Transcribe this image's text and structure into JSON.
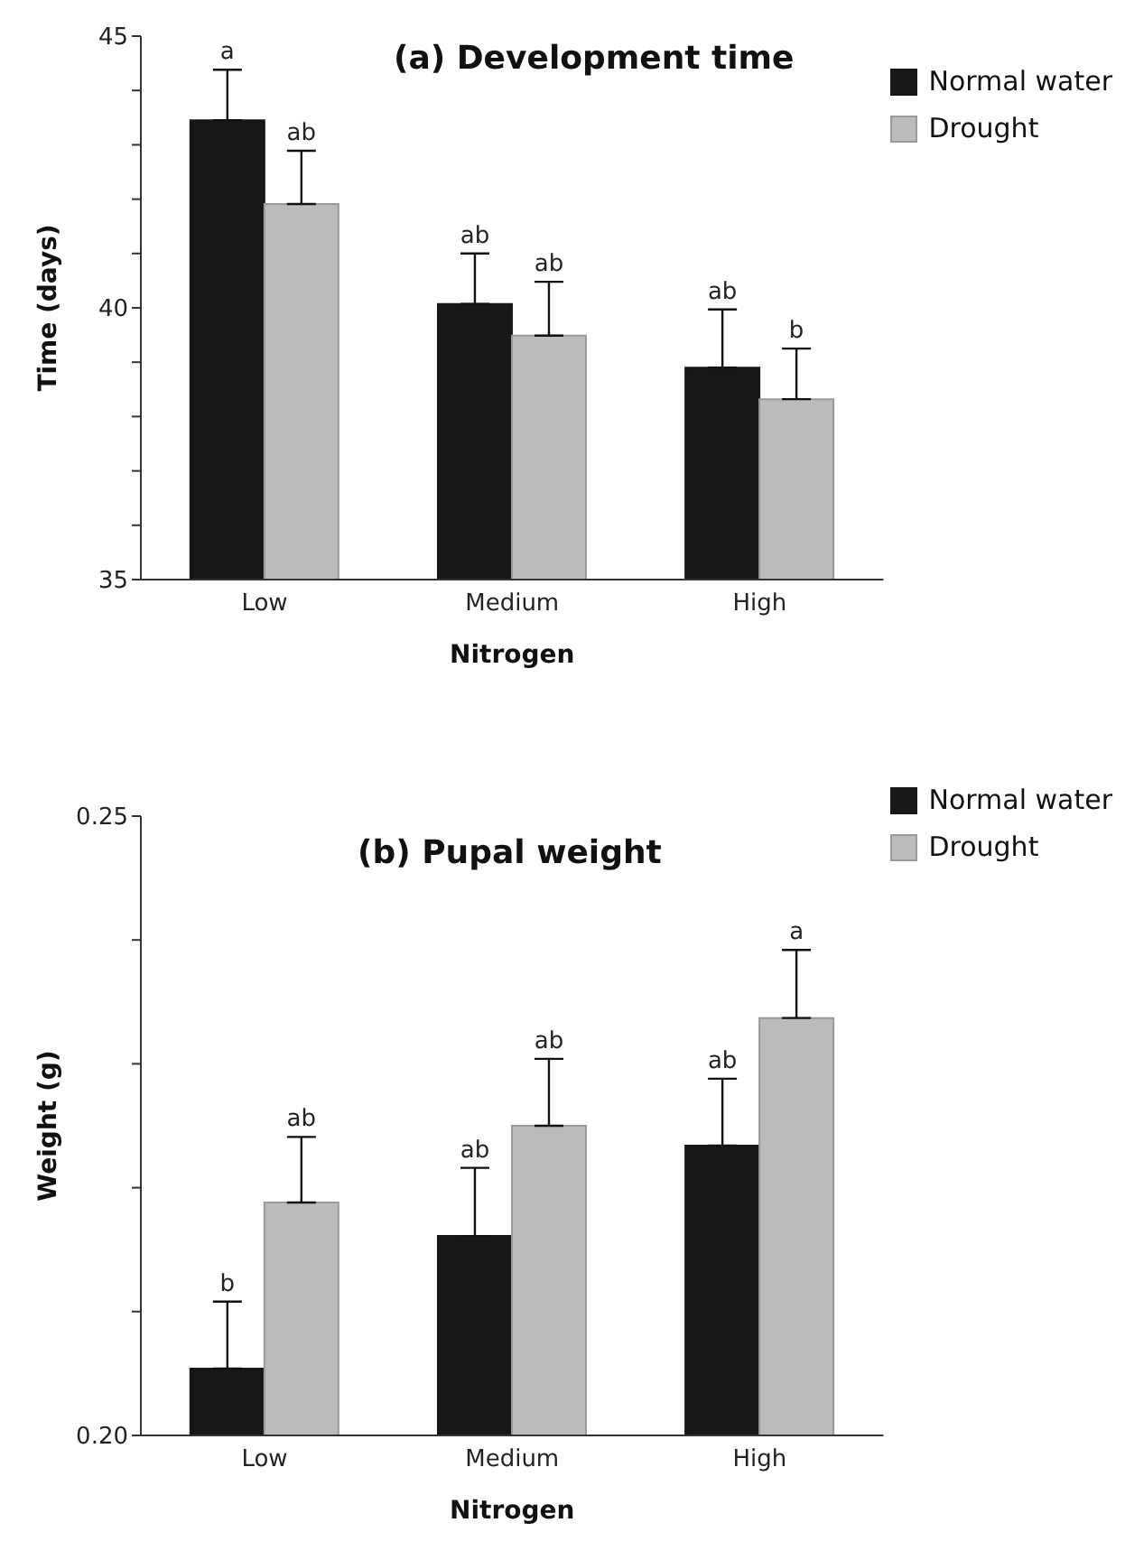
{
  "chart_data": [
    {
      "type": "bar",
      "title": "(a) Development time",
      "xlabel": "Nitrogen",
      "ylabel": "Time (days)",
      "categories": [
        "Low",
        "Medium",
        "High"
      ],
      "series": [
        {
          "name": "Normal water",
          "color": "#171717",
          "values": [
            43.45,
            40.07,
            38.9
          ],
          "errors": [
            [
              43.45,
              44.38
            ],
            [
              40.07,
              41.0
            ],
            [
              38.9,
              39.97
            ]
          ]
        },
        {
          "name": "Drought",
          "color": "#bbbbbb",
          "values": [
            41.91,
            39.49,
            38.32
          ],
          "errors": [
            [
              41.91,
              42.89
            ],
            [
              39.49,
              40.48
            ],
            [
              38.32,
              39.25
            ]
          ]
        }
      ],
      "ylim": [
        35,
        45
      ],
      "yticks": [
        35,
        {
          "value": 36,
          "label": null
        },
        {
          "value": 37,
          "label": null
        },
        {
          "value": 38,
          "label": null
        },
        {
          "value": 39,
          "label": null
        },
        40,
        {
          "value": 41,
          "label": null
        },
        {
          "value": 42,
          "label": null
        },
        {
          "value": 43,
          "label": null
        },
        {
          "value": 44,
          "label": null
        },
        45
      ],
      "annotations": [
        "a",
        "ab",
        "ab",
        "ab",
        "ab",
        "b"
      ],
      "legend": "top right",
      "grid": false
    },
    {
      "type": "bar",
      "title": "(b) Pupal weight",
      "xlabel": "Nitrogen",
      "ylabel": "Weight (g)",
      "categories": [
        "Low",
        "Medium",
        "High"
      ],
      "series": [
        {
          "name": "Normal water",
          "color": "#171717",
          "values": [
            0.2054,
            0.2161,
            0.2234
          ],
          "errors": [
            [
              0.2054,
              0.2108
            ],
            [
              0.2161,
              0.2216
            ],
            [
              0.2234,
              0.2288
            ]
          ]
        },
        {
          "name": "Drought",
          "color": "#bbbbbb",
          "values": [
            0.2188,
            0.225,
            0.2337
          ],
          "errors": [
            [
              0.2188,
              0.2241
            ],
            [
              0.225,
              0.2304
            ],
            [
              0.2337,
              0.2392
            ]
          ]
        }
      ],
      "ylim": [
        0.2,
        0.25
      ],
      "yticks": [
        {
          "value": 0.2,
          "label": "0.20"
        },
        {
          "value": 0.21,
          "label": null
        },
        {
          "value": 0.22,
          "label": null
        },
        {
          "value": 0.23,
          "label": null
        },
        {
          "value": 0.24,
          "label": null
        },
        0.25
      ],
      "annotations": [
        "b",
        "ab",
        "ab",
        "ab",
        "ab",
        "a"
      ],
      "legend": "top right",
      "grid": false
    }
  ]
}
